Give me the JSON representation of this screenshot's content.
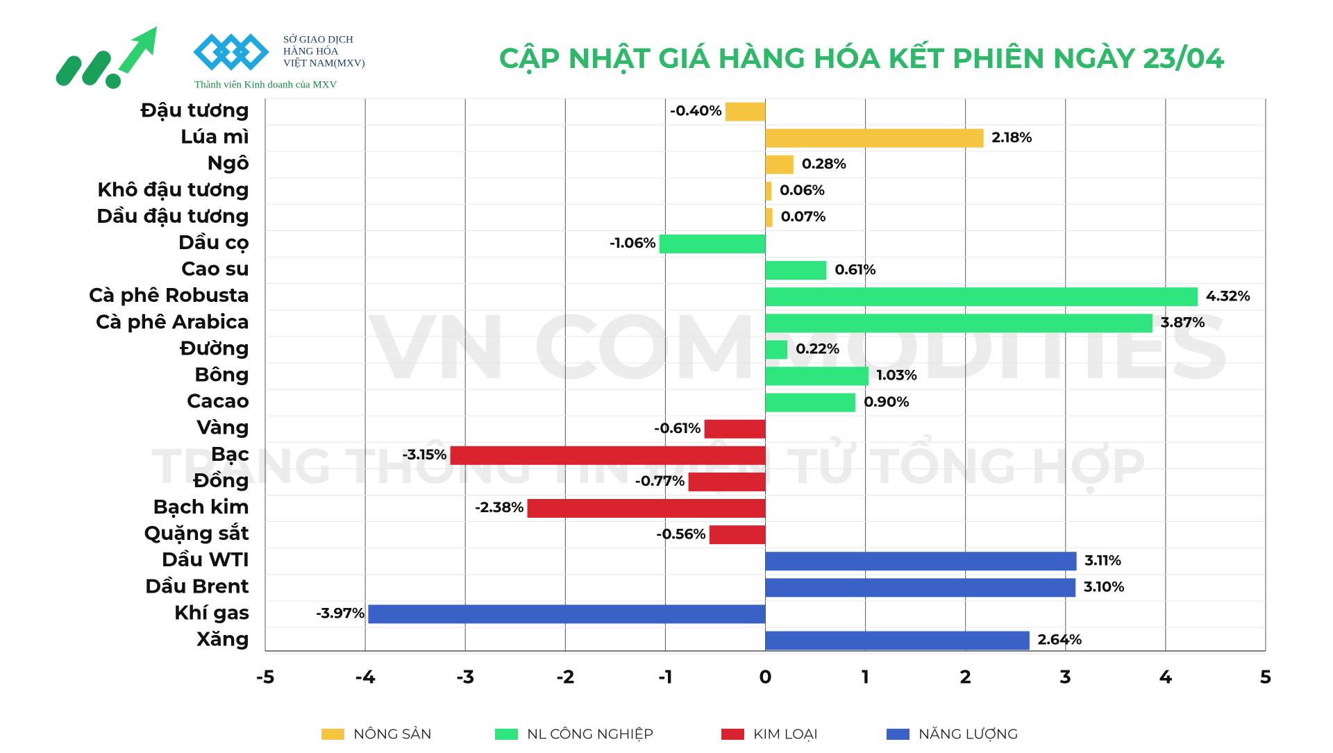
{
  "logo": {
    "exchange_line1": "SỞ GIAO DỊCH",
    "exchange_line2": "HÀNG HÓA",
    "exchange_line3": "VIỆT NAM(MXV)",
    "member": "Thành viên Kinh doanh của MXV"
  },
  "watermark": {
    "line1": "VN COMMODITIES",
    "line2": "TRANG THÔNG TIN ĐIỆN TỬ TỔNG HỢP"
  },
  "chart_data": {
    "type": "hbar",
    "title": "CẬP NHẬT GIÁ HÀNG HÓA KẾT PHIÊN NGÀY 23/04",
    "categories": [
      "Đậu tương",
      "Lúa mì",
      "Ngô",
      "Khô đậu tương",
      "Dầu đậu tương",
      "Dầu cọ",
      "Cao su",
      "Cà phê Robusta",
      "Cà phê Arabica",
      "Đường",
      "Bông",
      "Cacao",
      "Vàng",
      "Bạc",
      "Đồng",
      "Bạch kim",
      "Quặng sắt",
      "Dầu WTI",
      "Dầu Brent",
      "Khí gas",
      "Xăng"
    ],
    "series": [
      {
        "name": "NÔNG SẢN",
        "color": "#f5c542",
        "values": [
          -0.4,
          2.18,
          0.28,
          0.06,
          0.07,
          null,
          null,
          null,
          null,
          null,
          null,
          null,
          null,
          null,
          null,
          null,
          null,
          null,
          null,
          null,
          null
        ],
        "value_labels": [
          "-0.40%",
          "2.18%",
          "0.28%",
          "0.06%",
          "0.07%",
          null,
          null,
          null,
          null,
          null,
          null,
          null,
          null,
          null,
          null,
          null,
          null,
          null,
          null,
          null,
          null
        ]
      },
      {
        "name": "NL CÔNG NGHIỆP",
        "color": "#2ee67d",
        "values": [
          null,
          null,
          null,
          null,
          null,
          -1.06,
          0.61,
          4.32,
          3.87,
          0.22,
          1.03,
          0.9,
          null,
          null,
          null,
          null,
          null,
          null,
          null,
          null,
          null
        ],
        "value_labels": [
          null,
          null,
          null,
          null,
          null,
          "-1.06%",
          "0.61%",
          "4.32%",
          "3.87%",
          "0.22%",
          "1.03%",
          "0.90%",
          null,
          null,
          null,
          null,
          null,
          null,
          null,
          null,
          null
        ]
      },
      {
        "name": "KIM LOẠI",
        "color": "#d9232e",
        "values": [
          null,
          null,
          null,
          null,
          null,
          null,
          null,
          null,
          null,
          null,
          null,
          null,
          -0.61,
          -3.15,
          -0.77,
          -2.38,
          -0.56,
          null,
          null,
          null,
          null
        ],
        "value_labels": [
          null,
          null,
          null,
          null,
          null,
          null,
          null,
          null,
          null,
          null,
          null,
          null,
          "-0.61%",
          "-3.15%",
          "-0.77%",
          "-2.38%",
          "-0.56%",
          null,
          null,
          null,
          null
        ]
      },
      {
        "name": "NĂNG LƯỢNG",
        "color": "#3a62c6",
        "values": [
          null,
          null,
          null,
          null,
          null,
          null,
          null,
          null,
          null,
          null,
          null,
          null,
          null,
          null,
          null,
          null,
          null,
          3.11,
          3.1,
          -3.97,
          2.64
        ],
        "value_labels": [
          null,
          null,
          null,
          null,
          null,
          null,
          null,
          null,
          null,
          null,
          null,
          null,
          null,
          null,
          null,
          null,
          null,
          "3.11%",
          "3.10%",
          "-3.97%",
          "2.64%"
        ]
      }
    ],
    "xlim": [
      -5,
      5
    ],
    "xticks": [
      -5,
      -4,
      -3,
      -2,
      -1,
      0,
      1,
      2,
      3,
      4,
      5
    ],
    "grid": true,
    "legend": "bottom"
  }
}
